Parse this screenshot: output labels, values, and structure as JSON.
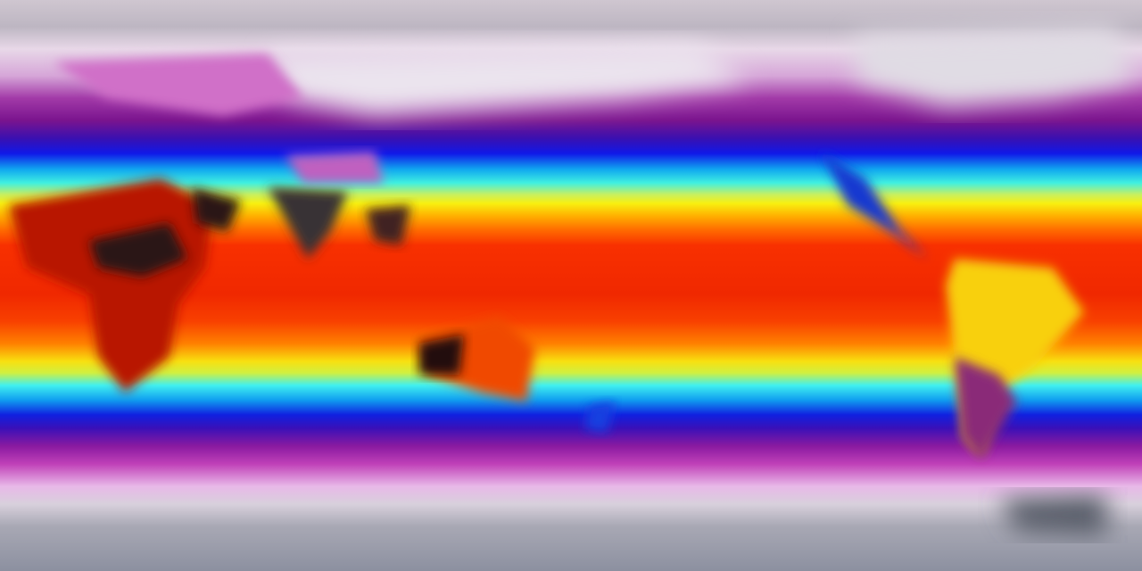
{
  "map": {
    "projection": "equirectangular",
    "colorscale": [
      "#8c90a0",
      "#d8d0dc",
      "#c040b8",
      "#7a148e",
      "#1018e8",
      "#40f0e0",
      "#f8f010",
      "#ff8000",
      "#f02800",
      "#301818"
    ]
  }
}
